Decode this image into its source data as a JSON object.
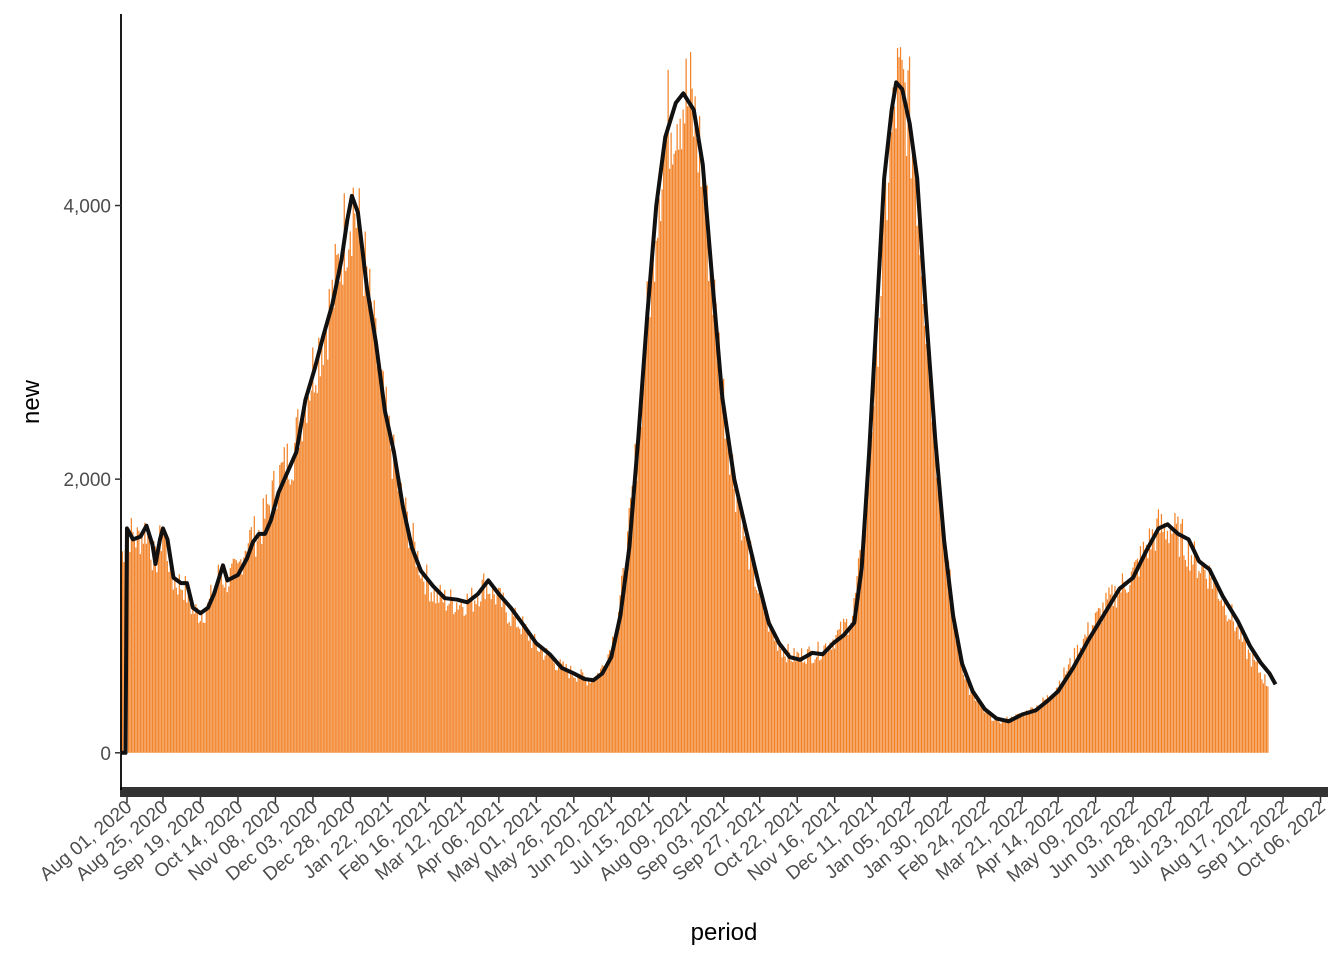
{
  "chart_data": {
    "type": "bar",
    "xlabel": "period",
    "ylabel": "new",
    "x_start": "2020-07-28",
    "x_end": "2022-10-11",
    "ylim": [
      -250,
      5400
    ],
    "grid": false,
    "legend": "none",
    "colors": {
      "bars": "#F28329",
      "line": "#111111",
      "axis": "#000000",
      "rug": "#333333"
    },
    "y_ticks": [
      {
        "value": 0,
        "label": "0"
      },
      {
        "value": 2000,
        "label": "2,000"
      },
      {
        "value": 4000,
        "label": "4,000"
      }
    ],
    "x_ticks": [
      {
        "date": "2020-08-01",
        "label": "Aug 01, 2020"
      },
      {
        "date": "2020-08-25",
        "label": "Aug 25, 2020"
      },
      {
        "date": "2020-09-19",
        "label": "Sep 19, 2020"
      },
      {
        "date": "2020-10-14",
        "label": "Oct 14, 2020"
      },
      {
        "date": "2020-11-08",
        "label": "Nov 08, 2020"
      },
      {
        "date": "2020-12-03",
        "label": "Dec 03, 2020"
      },
      {
        "date": "2020-12-28",
        "label": "Dec 28, 2020"
      },
      {
        "date": "2021-01-22",
        "label": "Jan 22, 2021"
      },
      {
        "date": "2021-02-16",
        "label": "Feb 16, 2021"
      },
      {
        "date": "2021-03-12",
        "label": "Mar 12, 2021"
      },
      {
        "date": "2021-04-06",
        "label": "Apr 06, 2021"
      },
      {
        "date": "2021-05-01",
        "label": "May 01, 2021"
      },
      {
        "date": "2021-05-26",
        "label": "May 26, 2021"
      },
      {
        "date": "2021-06-20",
        "label": "Jun 20, 2021"
      },
      {
        "date": "2021-07-15",
        "label": "Jul 15, 2021"
      },
      {
        "date": "2021-08-09",
        "label": "Aug 09, 2021"
      },
      {
        "date": "2021-09-03",
        "label": "Sep 03, 2021"
      },
      {
        "date": "2021-09-27",
        "label": "Sep 27, 2021"
      },
      {
        "date": "2021-10-22",
        "label": "Oct 22, 2021"
      },
      {
        "date": "2021-11-16",
        "label": "Nov 16, 2021"
      },
      {
        "date": "2021-12-11",
        "label": "Dec 11, 2021"
      },
      {
        "date": "2022-01-05",
        "label": "Jan 05, 2022"
      },
      {
        "date": "2022-01-30",
        "label": "Jan 30, 2022"
      },
      {
        "date": "2022-02-24",
        "label": "Feb 24, 2022"
      },
      {
        "date": "2022-03-21",
        "label": "Mar 21, 2022"
      },
      {
        "date": "2022-04-14",
        "label": "Apr 14, 2022"
      },
      {
        "date": "2022-05-09",
        "label": "May 09, 2022"
      },
      {
        "date": "2022-06-03",
        "label": "Jun 03, 2022"
      },
      {
        "date": "2022-06-28",
        "label": "Jun 28, 2022"
      },
      {
        "date": "2022-07-23",
        "label": "Jul 23, 2022"
      },
      {
        "date": "2022-08-17",
        "label": "Aug 17, 2022"
      },
      {
        "date": "2022-09-11",
        "label": "Sep 11, 2022"
      },
      {
        "date": "2022-10-06",
        "label": "Oct 06, 2022"
      }
    ],
    "series": [
      {
        "type": "bar",
        "anchors": [
          [
            "2020-07-28",
            1400
          ],
          [
            "2020-08-01",
            1620
          ],
          [
            "2020-08-08",
            1560
          ],
          [
            "2020-08-14",
            1640
          ],
          [
            "2020-08-20",
            1380
          ],
          [
            "2020-08-25",
            1620
          ],
          [
            "2020-09-01",
            1260
          ],
          [
            "2020-09-08",
            1220
          ],
          [
            "2020-09-14",
            1040
          ],
          [
            "2020-09-19",
            1020
          ],
          [
            "2020-09-24",
            1060
          ],
          [
            "2020-10-02",
            1320
          ],
          [
            "2020-10-06",
            1260
          ],
          [
            "2020-10-14",
            1320
          ],
          [
            "2020-10-20",
            1560
          ],
          [
            "2020-10-28",
            1600
          ],
          [
            "2020-11-04",
            1820
          ],
          [
            "2020-11-10",
            2000
          ],
          [
            "2020-11-20",
            2200
          ],
          [
            "2020-11-28",
            2600
          ],
          [
            "2020-12-08",
            3000
          ],
          [
            "2020-12-16",
            3300
          ],
          [
            "2020-12-24",
            3800
          ],
          [
            "2020-12-30",
            4050
          ],
          [
            "2021-01-05",
            3700
          ],
          [
            "2021-01-12",
            3100
          ],
          [
            "2021-01-20",
            2500
          ],
          [
            "2021-01-28",
            2000
          ],
          [
            "2021-02-06",
            1600
          ],
          [
            "2021-02-14",
            1320
          ],
          [
            "2021-02-22",
            1160
          ],
          [
            "2021-03-02",
            1110
          ],
          [
            "2021-03-12",
            1100
          ],
          [
            "2021-03-20",
            1120
          ],
          [
            "2021-03-28",
            1240
          ],
          [
            "2021-04-06",
            1120
          ],
          [
            "2021-04-14",
            1000
          ],
          [
            "2021-04-22",
            920
          ],
          [
            "2021-05-01",
            780
          ],
          [
            "2021-05-10",
            700
          ],
          [
            "2021-05-18",
            620
          ],
          [
            "2021-05-26",
            580
          ],
          [
            "2021-06-04",
            540
          ],
          [
            "2021-06-10",
            560
          ],
          [
            "2021-06-16",
            650
          ],
          [
            "2021-06-23",
            900
          ],
          [
            "2021-06-30",
            1400
          ],
          [
            "2021-07-07",
            2200
          ],
          [
            "2021-07-15",
            3300
          ],
          [
            "2021-07-22",
            4200
          ],
          [
            "2021-07-29",
            4650
          ],
          [
            "2021-08-05",
            4800
          ],
          [
            "2021-08-12",
            4750
          ],
          [
            "2021-08-19",
            4350
          ],
          [
            "2021-08-26",
            3500
          ],
          [
            "2021-09-03",
            2600
          ],
          [
            "2021-09-10",
            2000
          ],
          [
            "2021-09-18",
            1550
          ],
          [
            "2021-09-27",
            1150
          ],
          [
            "2021-10-05",
            880
          ],
          [
            "2021-10-12",
            760
          ],
          [
            "2021-10-19",
            700
          ],
          [
            "2021-10-27",
            720
          ],
          [
            "2021-11-04",
            730
          ],
          [
            "2021-11-12",
            800
          ],
          [
            "2021-11-20",
            880
          ],
          [
            "2021-11-28",
            1000
          ],
          [
            "2021-12-04",
            1450
          ],
          [
            "2021-12-10",
            2300
          ],
          [
            "2021-12-16",
            3300
          ],
          [
            "2021-12-22",
            4300
          ],
          [
            "2021-12-28",
            4850
          ],
          [
            "2022-01-03",
            4800
          ],
          [
            "2022-01-09",
            4300
          ],
          [
            "2022-01-16",
            3200
          ],
          [
            "2022-01-23",
            2200
          ],
          [
            "2022-01-30",
            1400
          ],
          [
            "2022-02-06",
            800
          ],
          [
            "2022-02-14",
            450
          ],
          [
            "2022-02-24",
            300
          ],
          [
            "2022-03-05",
            230
          ],
          [
            "2022-03-14",
            250
          ],
          [
            "2022-03-21",
            280
          ],
          [
            "2022-03-30",
            330
          ],
          [
            "2022-04-07",
            400
          ],
          [
            "2022-04-14",
            500
          ],
          [
            "2022-04-24",
            680
          ],
          [
            "2022-05-04",
            880
          ],
          [
            "2022-05-14",
            1050
          ],
          [
            "2022-05-25",
            1200
          ],
          [
            "2022-06-03",
            1300
          ],
          [
            "2022-06-12",
            1500
          ],
          [
            "2022-06-20",
            1640
          ],
          [
            "2022-06-28",
            1640
          ],
          [
            "2022-07-06",
            1560
          ],
          [
            "2022-07-15",
            1400
          ],
          [
            "2022-07-23",
            1320
          ],
          [
            "2022-08-01",
            1150
          ],
          [
            "2022-08-10",
            950
          ],
          [
            "2022-08-17",
            760
          ],
          [
            "2022-08-25",
            620
          ],
          [
            "2022-09-01",
            500
          ]
        ]
      },
      {
        "type": "line",
        "points": [
          [
            "2020-07-28",
            0
          ],
          [
            "2020-07-31",
            0
          ],
          [
            "2020-08-01",
            1640
          ],
          [
            "2020-08-05",
            1560
          ],
          [
            "2020-08-10",
            1580
          ],
          [
            "2020-08-14",
            1660
          ],
          [
            "2020-08-18",
            1520
          ],
          [
            "2020-08-20",
            1380
          ],
          [
            "2020-08-23",
            1560
          ],
          [
            "2020-08-25",
            1640
          ],
          [
            "2020-08-28",
            1560
          ],
          [
            "2020-09-01",
            1280
          ],
          [
            "2020-09-06",
            1240
          ],
          [
            "2020-09-10",
            1240
          ],
          [
            "2020-09-14",
            1060
          ],
          [
            "2020-09-19",
            1020
          ],
          [
            "2020-09-24",
            1060
          ],
          [
            "2020-09-28",
            1160
          ],
          [
            "2020-10-02",
            1300
          ],
          [
            "2020-10-04",
            1370
          ],
          [
            "2020-10-07",
            1260
          ],
          [
            "2020-10-14",
            1300
          ],
          [
            "2020-10-20",
            1420
          ],
          [
            "2020-10-24",
            1540
          ],
          [
            "2020-10-28",
            1600
          ],
          [
            "2020-11-01",
            1600
          ],
          [
            "2020-11-05",
            1700
          ],
          [
            "2020-11-10",
            1900
          ],
          [
            "2020-11-16",
            2050
          ],
          [
            "2020-11-22",
            2200
          ],
          [
            "2020-11-28",
            2580
          ],
          [
            "2020-12-04",
            2800
          ],
          [
            "2020-12-10",
            3050
          ],
          [
            "2020-12-16",
            3280
          ],
          [
            "2020-12-22",
            3600
          ],
          [
            "2020-12-26",
            3900
          ],
          [
            "2020-12-29",
            4070
          ],
          [
            "2021-01-02",
            3950
          ],
          [
            "2021-01-08",
            3400
          ],
          [
            "2021-01-14",
            3000
          ],
          [
            "2021-01-20",
            2500
          ],
          [
            "2021-01-26",
            2200
          ],
          [
            "2021-02-01",
            1800
          ],
          [
            "2021-02-07",
            1500
          ],
          [
            "2021-02-13",
            1330
          ],
          [
            "2021-02-21",
            1220
          ],
          [
            "2021-03-01",
            1130
          ],
          [
            "2021-03-09",
            1120
          ],
          [
            "2021-03-16",
            1100
          ],
          [
            "2021-03-23",
            1160
          ],
          [
            "2021-03-30",
            1260
          ],
          [
            "2021-04-06",
            1160
          ],
          [
            "2021-04-14",
            1060
          ],
          [
            "2021-04-22",
            940
          ],
          [
            "2021-05-01",
            800
          ],
          [
            "2021-05-10",
            720
          ],
          [
            "2021-05-18",
            620
          ],
          [
            "2021-05-26",
            580
          ],
          [
            "2021-06-02",
            540
          ],
          [
            "2021-06-08",
            530
          ],
          [
            "2021-06-14",
            580
          ],
          [
            "2021-06-20",
            700
          ],
          [
            "2021-06-26",
            1000
          ],
          [
            "2021-07-02",
            1500
          ],
          [
            "2021-07-08",
            2300
          ],
          [
            "2021-07-14",
            3200
          ],
          [
            "2021-07-20",
            4000
          ],
          [
            "2021-07-26",
            4500
          ],
          [
            "2021-08-02",
            4750
          ],
          [
            "2021-08-07",
            4820
          ],
          [
            "2021-08-14",
            4700
          ],
          [
            "2021-08-20",
            4300
          ],
          [
            "2021-08-26",
            3500
          ],
          [
            "2021-09-02",
            2600
          ],
          [
            "2021-09-10",
            2000
          ],
          [
            "2021-09-18",
            1620
          ],
          [
            "2021-09-26",
            1250
          ],
          [
            "2021-10-03",
            950
          ],
          [
            "2021-10-10",
            800
          ],
          [
            "2021-10-17",
            700
          ],
          [
            "2021-10-24",
            680
          ],
          [
            "2021-11-01",
            730
          ],
          [
            "2021-11-08",
            720
          ],
          [
            "2021-11-15",
            800
          ],
          [
            "2021-11-22",
            860
          ],
          [
            "2021-11-29",
            950
          ],
          [
            "2021-12-04",
            1350
          ],
          [
            "2021-12-09",
            2200
          ],
          [
            "2021-12-14",
            3200
          ],
          [
            "2021-12-19",
            4200
          ],
          [
            "2021-12-24",
            4700
          ],
          [
            "2021-12-27",
            4900
          ],
          [
            "2021-12-31",
            4850
          ],
          [
            "2022-01-05",
            4600
          ],
          [
            "2022-01-10",
            4200
          ],
          [
            "2022-01-16",
            3200
          ],
          [
            "2022-01-22",
            2300
          ],
          [
            "2022-01-28",
            1550
          ],
          [
            "2022-02-03",
            1000
          ],
          [
            "2022-02-09",
            650
          ],
          [
            "2022-02-16",
            450
          ],
          [
            "2022-02-24",
            320
          ],
          [
            "2022-03-04",
            250
          ],
          [
            "2022-03-12",
            230
          ],
          [
            "2022-03-21",
            280
          ],
          [
            "2022-03-30",
            310
          ],
          [
            "2022-04-07",
            380
          ],
          [
            "2022-04-14",
            450
          ],
          [
            "2022-04-24",
            620
          ],
          [
            "2022-05-04",
            820
          ],
          [
            "2022-05-14",
            1000
          ],
          [
            "2022-05-25",
            1200
          ],
          [
            "2022-06-03",
            1280
          ],
          [
            "2022-06-12",
            1480
          ],
          [
            "2022-06-20",
            1640
          ],
          [
            "2022-06-26",
            1670
          ],
          [
            "2022-07-03",
            1600
          ],
          [
            "2022-07-10",
            1560
          ],
          [
            "2022-07-17",
            1400
          ],
          [
            "2022-07-24",
            1340
          ],
          [
            "2022-08-02",
            1140
          ],
          [
            "2022-08-12",
            960
          ],
          [
            "2022-08-20",
            780
          ],
          [
            "2022-08-27",
            660
          ],
          [
            "2022-09-02",
            580
          ],
          [
            "2022-09-06",
            500
          ]
        ]
      }
    ]
  }
}
